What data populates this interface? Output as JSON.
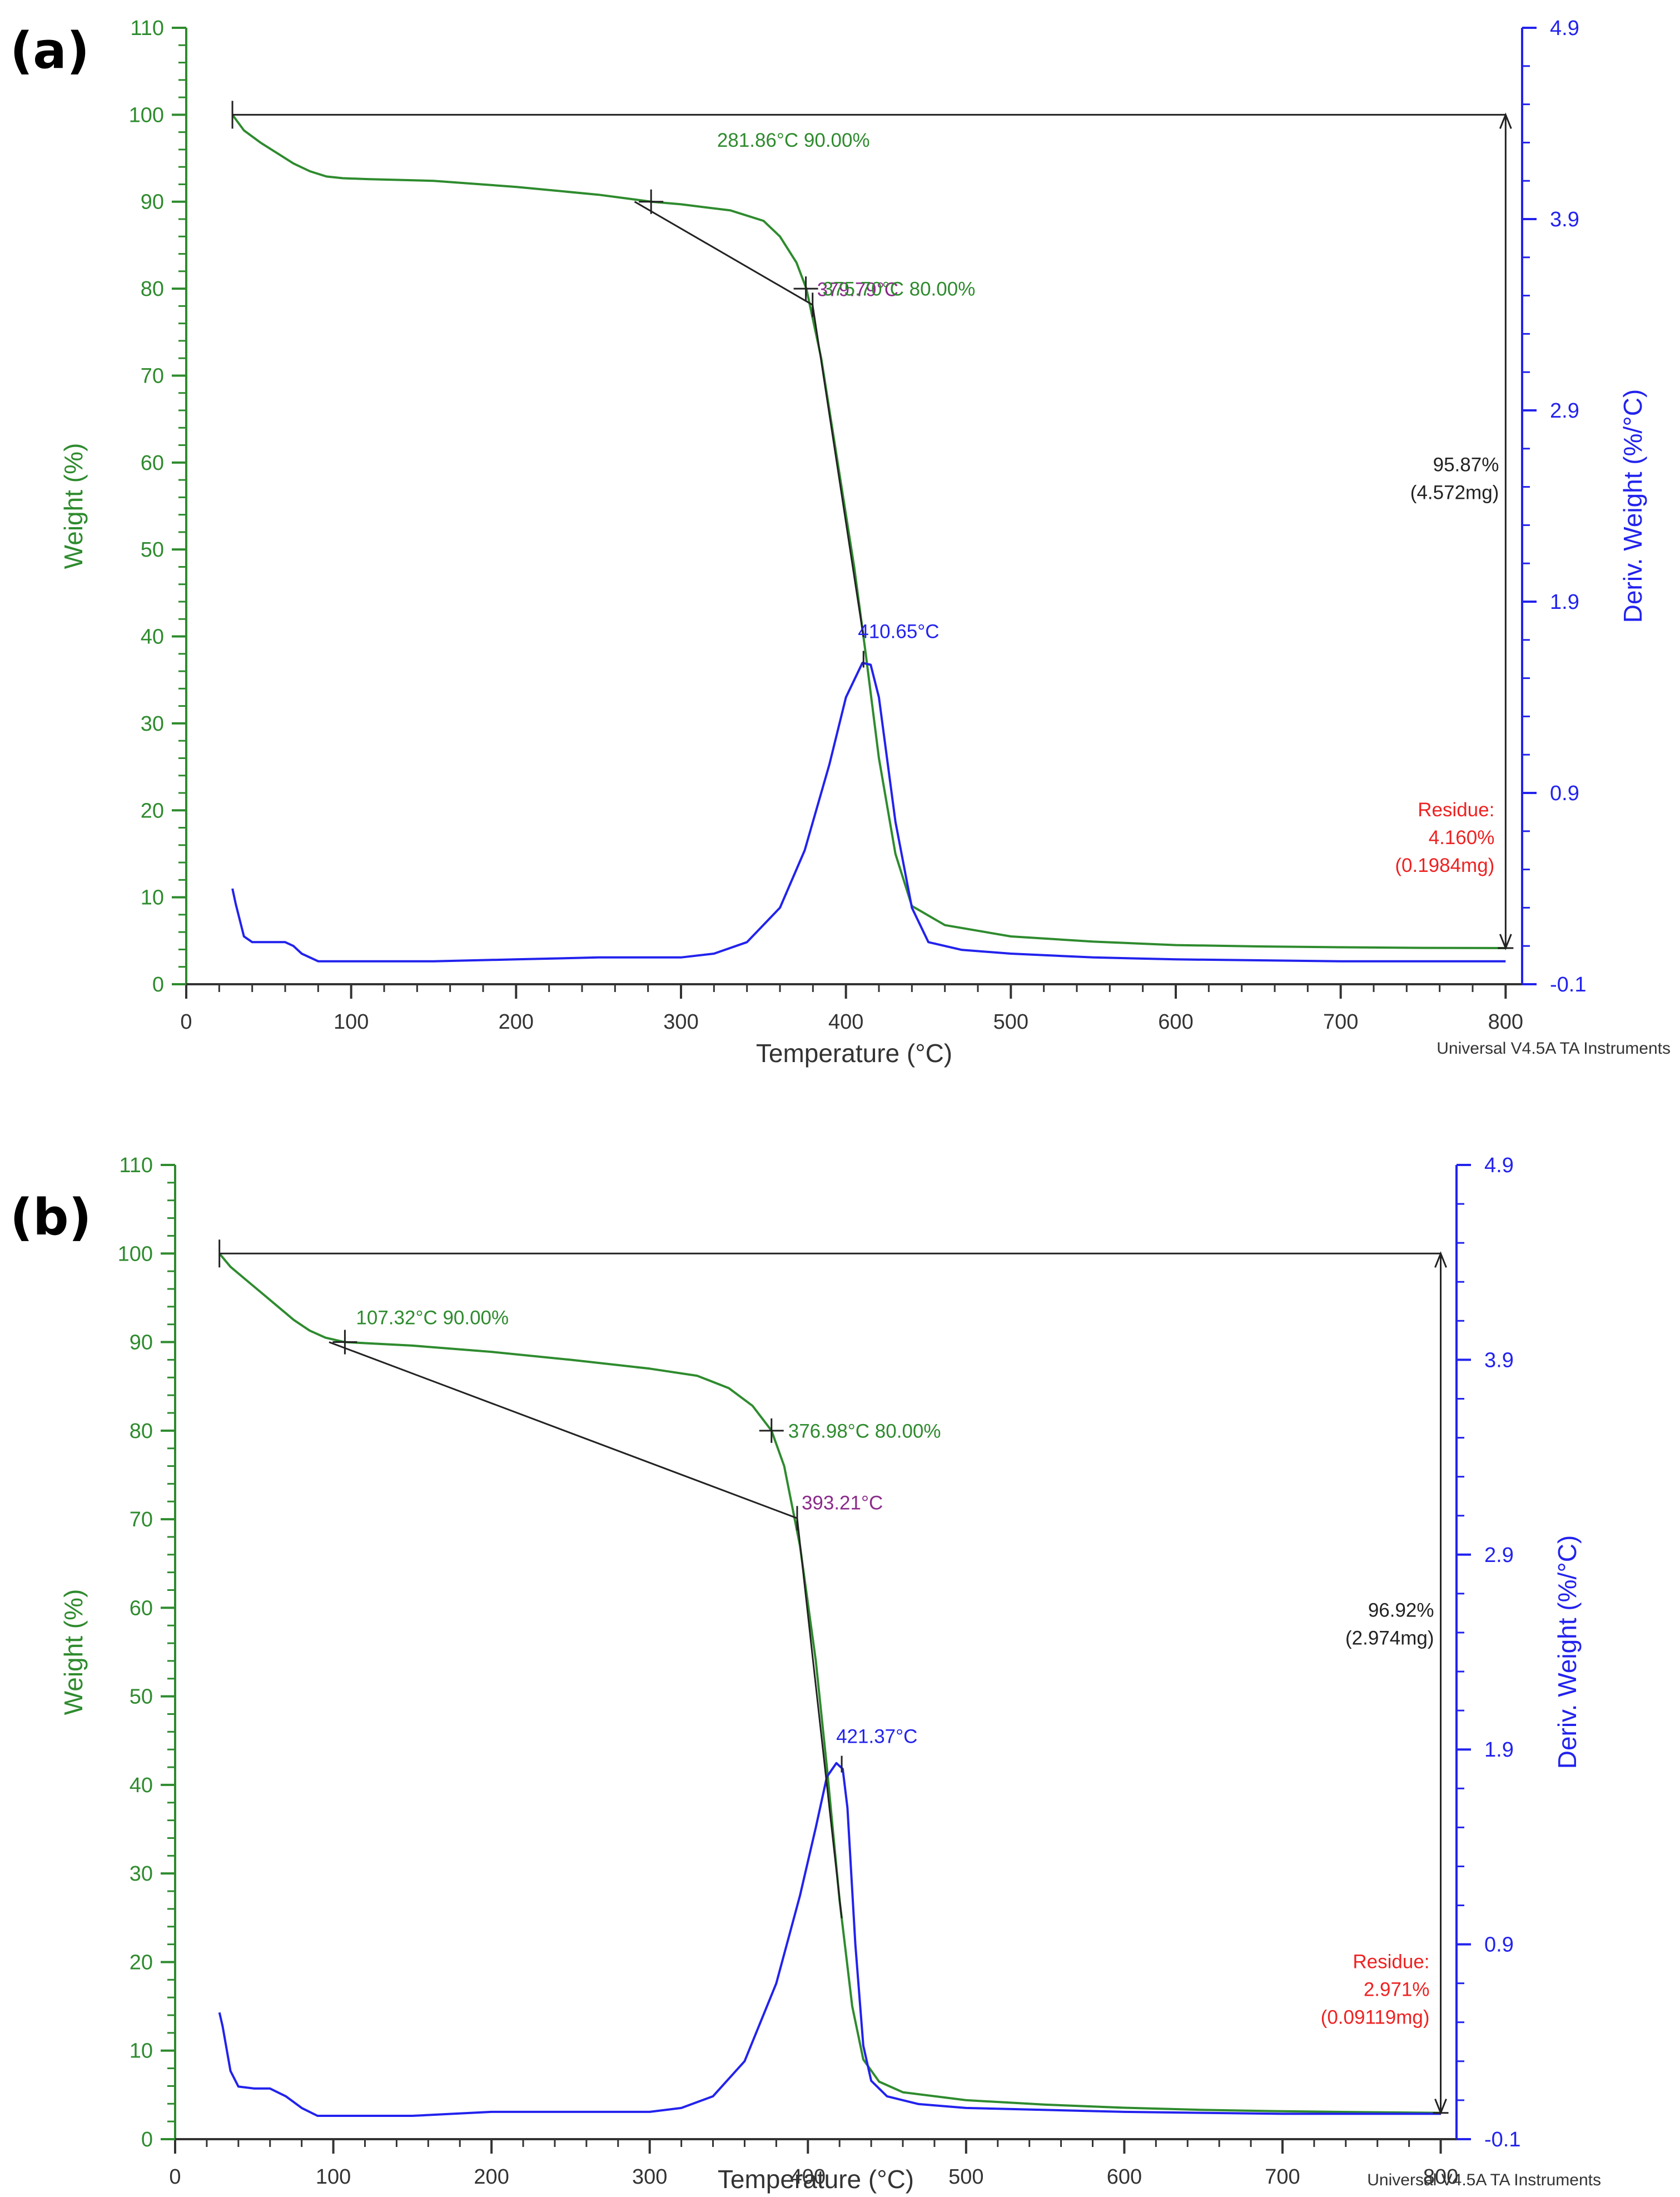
{
  "chart_data": [
    {
      "type": "line",
      "panel_label": "(a)",
      "xlabel": "Temperature (°C)",
      "ylabel": "Weight (%)",
      "y2label": "Deriv. Weight (%/°C)",
      "xlim": [
        0,
        810
      ],
      "ylim": [
        0,
        110
      ],
      "y2lim": [
        -0.1,
        4.9
      ],
      "xticks": [
        "0",
        "100",
        "200",
        "300",
        "400",
        "500",
        "600",
        "700",
        "800"
      ],
      "yticks": [
        "0",
        "10",
        "20",
        "30",
        "40",
        "50",
        "60",
        "70",
        "80",
        "90",
        "100",
        "110"
      ],
      "y2ticks": [
        "-0.1",
        "0.9",
        "1.9",
        "2.9",
        "3.9",
        "4.9"
      ],
      "footer": "Universal V4.5A TA Instruments",
      "colors": {
        "weight": "#2e8b2e",
        "deriv": "#2222ee",
        "annot": "#222222",
        "onset": "#8b2a8b",
        "residue": "#ee2222",
        "axis": "#333333"
      },
      "series": [
        {
          "name": "Weight",
          "axis": "left",
          "x": [
            28,
            35,
            45,
            55,
            65,
            75,
            85,
            95,
            110,
            150,
            200,
            250,
            282,
            300,
            330,
            350,
            360,
            370,
            376,
            385,
            395,
            405,
            412,
            420,
            430,
            440,
            460,
            500,
            550,
            600,
            650,
            700,
            750,
            800
          ],
          "values": [
            100,
            98.2,
            96.8,
            95.6,
            94.4,
            93.5,
            92.9,
            92.7,
            92.6,
            92.4,
            91.7,
            90.8,
            90.0,
            89.7,
            89.0,
            87.8,
            86.0,
            83.0,
            80.0,
            72.0,
            60.0,
            48.0,
            38.0,
            26.0,
            15.0,
            9.0,
            6.8,
            5.5,
            4.9,
            4.5,
            4.35,
            4.25,
            4.18,
            4.16
          ]
        },
        {
          "name": "Deriv. Weight",
          "axis": "right",
          "x": [
            28,
            30,
            35,
            40,
            50,
            60,
            65,
            70,
            80,
            90,
            100,
            150,
            200,
            250,
            300,
            320,
            340,
            360,
            375,
            390,
            400,
            410,
            415,
            420,
            430,
            440,
            450,
            470,
            500,
            550,
            600,
            700,
            800
          ],
          "values": [
            0.4,
            0.32,
            0.15,
            0.12,
            0.12,
            0.12,
            0.1,
            0.06,
            0.02,
            0.02,
            0.02,
            0.02,
            0.03,
            0.04,
            0.04,
            0.06,
            0.12,
            0.3,
            0.6,
            1.05,
            1.4,
            1.58,
            1.57,
            1.4,
            0.75,
            0.3,
            0.12,
            0.08,
            0.06,
            0.04,
            0.03,
            0.02,
            0.02
          ]
        }
      ],
      "annotations": {
        "t90": "281.86°C 90.00%",
        "onset": "379.79°C",
        "t80": "375.70°C 80.00%",
        "peak": "410.65°C",
        "loss_pct": "95.87%",
        "loss_mg": "(4.572mg)",
        "residue_label": "Residue:",
        "residue_pct": "4.160%",
        "residue_mg": "(0.1984mg)"
      },
      "markers": {
        "t90_x": 281.86,
        "t80_x": 375.7,
        "onset_x": 379.79,
        "peak_x": 410.65,
        "start_x": 28,
        "end_x": 800
      }
    },
    {
      "type": "line",
      "panel_label": "(b)",
      "xlabel": "Temperature (°C)",
      "ylabel": "Weight (%)",
      "y2label": "Deriv. Weight (%/°C)",
      "xlim": [
        0,
        810
      ],
      "ylim": [
        0,
        110
      ],
      "y2lim": [
        -0.1,
        4.9
      ],
      "xticks": [
        "0",
        "100",
        "200",
        "300",
        "400",
        "500",
        "600",
        "700",
        "800"
      ],
      "yticks": [
        "0",
        "10",
        "20",
        "30",
        "40",
        "50",
        "60",
        "70",
        "80",
        "90",
        "100",
        "110"
      ],
      "y2ticks": [
        "-0.1",
        "0.9",
        "1.9",
        "2.9",
        "3.9",
        "4.9"
      ],
      "footer": "Universal V4.5A TA Instruments",
      "colors": {
        "weight": "#2e8b2e",
        "deriv": "#2222ee",
        "annot": "#222222",
        "onset": "#8b2a8b",
        "residue": "#ee2222",
        "axis": "#333333"
      },
      "series": [
        {
          "name": "Weight",
          "axis": "left",
          "x": [
            28,
            35,
            45,
            55,
            65,
            75,
            85,
            95,
            107,
            150,
            200,
            250,
            300,
            330,
            350,
            365,
            377,
            385,
            395,
            405,
            412,
            420,
            428,
            435,
            445,
            460,
            500,
            550,
            600,
            650,
            700,
            750,
            800
          ],
          "values": [
            100,
            98.5,
            97.0,
            95.5,
            94.0,
            92.5,
            91.3,
            90.5,
            90.0,
            89.6,
            88.9,
            88.0,
            87.0,
            86.2,
            84.8,
            82.8,
            80.0,
            76.0,
            67.0,
            54.0,
            42.0,
            27.0,
            15.0,
            9.0,
            6.5,
            5.3,
            4.4,
            3.9,
            3.55,
            3.3,
            3.15,
            3.05,
            2.97
          ]
        },
        {
          "name": "Deriv. Weight",
          "axis": "right",
          "x": [
            28,
            30,
            35,
            40,
            50,
            60,
            70,
            80,
            90,
            100,
            150,
            200,
            250,
            300,
            320,
            340,
            360,
            380,
            395,
            405,
            412,
            418,
            422,
            425,
            430,
            435,
            440,
            450,
            470,
            500,
            600,
            700,
            800
          ],
          "values": [
            0.55,
            0.48,
            0.25,
            0.17,
            0.16,
            0.16,
            0.12,
            0.06,
            0.02,
            0.02,
            0.02,
            0.04,
            0.04,
            0.04,
            0.06,
            0.12,
            0.3,
            0.7,
            1.15,
            1.5,
            1.76,
            1.83,
            1.8,
            1.6,
            0.9,
            0.38,
            0.2,
            0.12,
            0.08,
            0.06,
            0.04,
            0.03,
            0.03
          ]
        }
      ],
      "annotations": {
        "t90": "107.32°C 90.00%",
        "onset": "393.21°C",
        "t80": "376.98°C 80.00%",
        "peak": "421.37°C",
        "loss_pct": "96.92%",
        "loss_mg": "(2.974mg)",
        "residue_label": "Residue:",
        "residue_pct": "2.971%",
        "residue_mg": "(0.09119mg)"
      },
      "markers": {
        "t90_x": 107.32,
        "t80_x": 376.98,
        "onset_x": 393.21,
        "peak_x": 421.37,
        "start_x": 28,
        "end_x": 800
      }
    }
  ]
}
